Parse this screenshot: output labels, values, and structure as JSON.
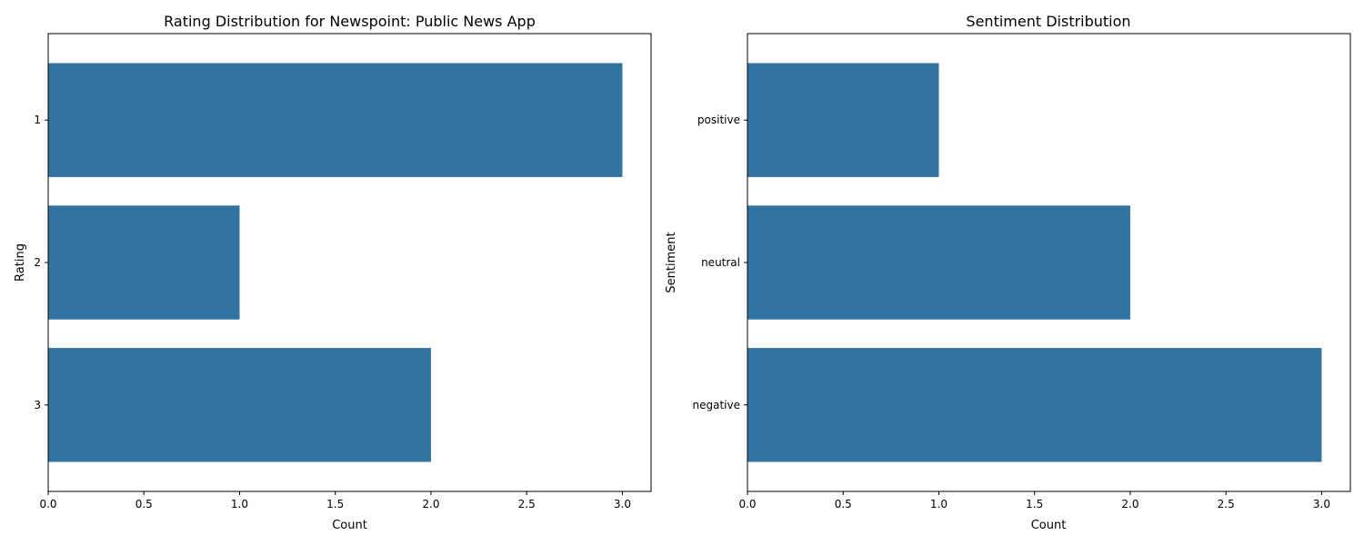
{
  "chart_data": [
    {
      "type": "bar",
      "orientation": "horizontal",
      "title": "Rating Distribution for Newspoint: Public News App",
      "xlabel": "Count",
      "ylabel": "Rating",
      "categories": [
        "1",
        "2",
        "3"
      ],
      "values": [
        3,
        1,
        2
      ],
      "xlim": [
        0,
        3.15
      ],
      "xticks": [
        "0.0",
        "0.5",
        "1.0",
        "1.5",
        "2.0",
        "2.5",
        "3.0"
      ],
      "color": "#3274a1",
      "grid": false
    },
    {
      "type": "bar",
      "orientation": "horizontal",
      "title": "Sentiment Distribution",
      "xlabel": "Count",
      "ylabel": "Sentiment",
      "categories": [
        "positive",
        "neutral",
        "negative"
      ],
      "values": [
        1,
        2,
        3
      ],
      "xlim": [
        0,
        3.15
      ],
      "xticks": [
        "0.0",
        "0.5",
        "1.0",
        "1.5",
        "2.0",
        "2.5",
        "3.0"
      ],
      "color": "#3274a1",
      "grid": false
    }
  ]
}
